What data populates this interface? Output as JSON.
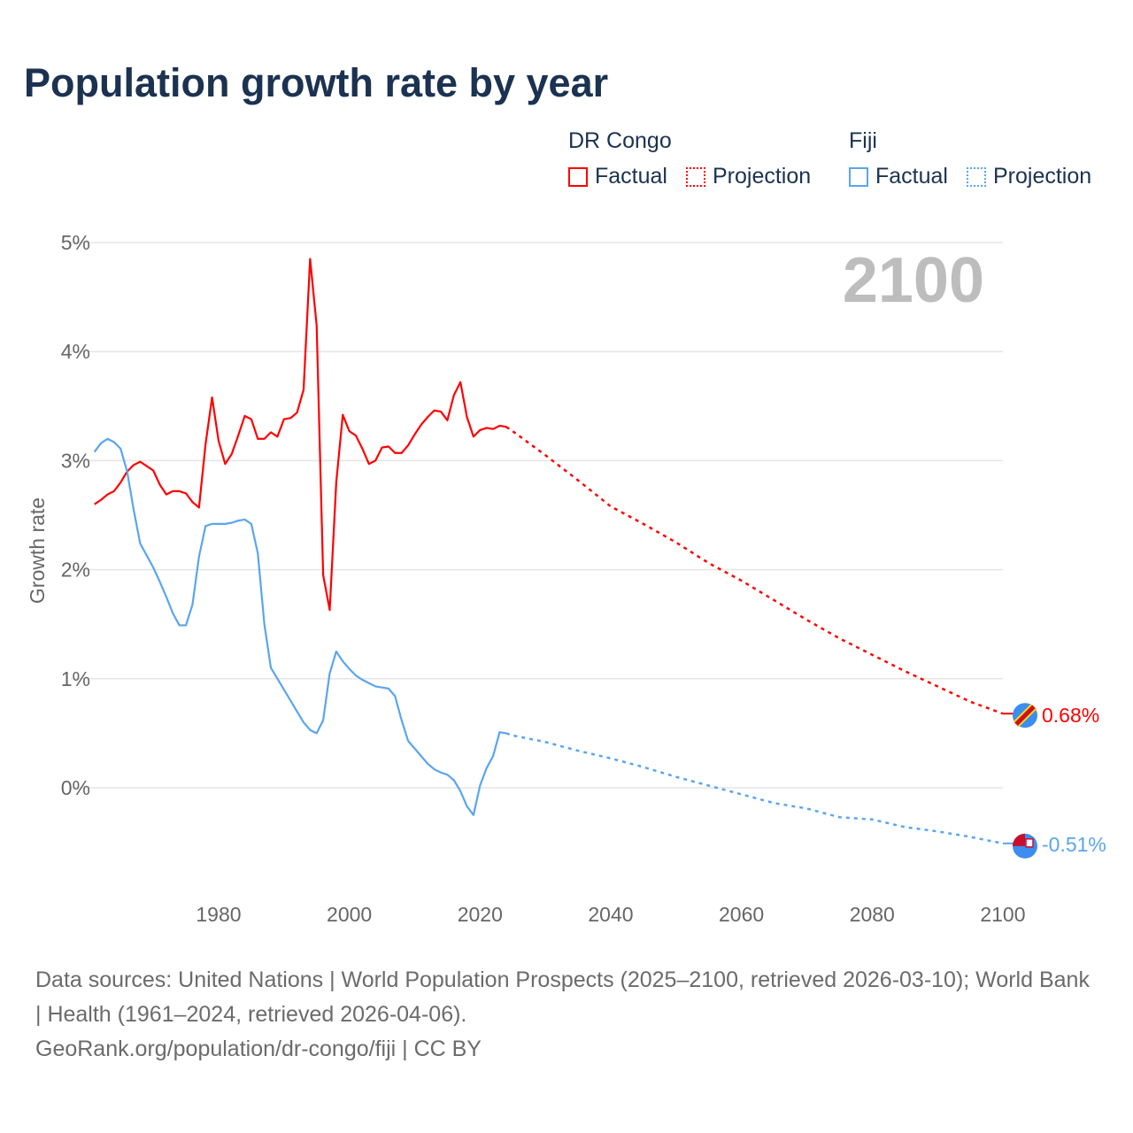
{
  "title": "Population growth rate by year",
  "legend": {
    "groups": [
      {
        "country": "DR Congo",
        "factual": "Factual",
        "projection": "Projection",
        "color": "#ff0000"
      },
      {
        "country": "Fiji",
        "factual": "Factual",
        "projection": "Projection",
        "color": "#5aa5ee"
      }
    ]
  },
  "year_label": "2100",
  "footer": {
    "sources": "Data sources: United Nations | World Population Prospects (2025–2100, retrieved 2026-03-10); World Bank | Health (1961–2024, retrieved 2026-04-06).",
    "credit": "GeoRank.org/population/dr-congo/fiji | CC BY"
  },
  "chart_data": {
    "type": "line",
    "ylabel": "Growth rate",
    "xlim": [
      1961,
      2100
    ],
    "ylim": [
      -1,
      5
    ],
    "x_ticks": [
      "1980",
      "2000",
      "2020",
      "2040",
      "2060",
      "2080",
      "2100"
    ],
    "y_ticks": [
      "0%",
      "1%",
      "2%",
      "3%",
      "4%",
      "5%"
    ],
    "grid": true,
    "series": [
      {
        "name": "DR Congo",
        "color": "#ff0000",
        "end_label": "0.68%",
        "factual_start": 1961,
        "factual": [
          2.6,
          2.64,
          2.69,
          2.72,
          2.8,
          2.9,
          2.96,
          2.99,
          2.95,
          2.91,
          2.78,
          2.69,
          2.72,
          2.72,
          2.7,
          2.62,
          2.57,
          3.15,
          3.58,
          3.18,
          2.97,
          3.06,
          3.23,
          3.41,
          3.38,
          3.2,
          3.2,
          3.26,
          3.22,
          3.38,
          3.39,
          3.44,
          3.65,
          4.85,
          4.24,
          1.95,
          1.63,
          2.8,
          3.42,
          3.27,
          3.23,
          3.11,
          2.97,
          3.0,
          3.12,
          3.13,
          3.07,
          3.07,
          3.14,
          3.24,
          3.33,
          3.4,
          3.46,
          3.45,
          3.37,
          3.6,
          3.72,
          3.4,
          3.22,
          3.28,
          3.3,
          3.29,
          3.32,
          3.31
        ],
        "projection_years": [
          2024,
          2025,
          2030,
          2035,
          2040,
          2045,
          2050,
          2055,
          2060,
          2065,
          2070,
          2075,
          2080,
          2085,
          2090,
          2095,
          2100
        ],
        "projection": [
          3.31,
          3.27,
          3.05,
          2.82,
          2.58,
          2.42,
          2.25,
          2.06,
          1.9,
          1.72,
          1.54,
          1.37,
          1.22,
          1.07,
          0.93,
          0.79,
          0.68
        ]
      },
      {
        "name": "Fiji",
        "color": "#5aa5ee",
        "end_label": "-0.51%",
        "factual_start": 1961,
        "factual": [
          3.08,
          3.16,
          3.2,
          3.17,
          3.11,
          2.9,
          2.55,
          2.24,
          2.13,
          2.02,
          1.89,
          1.75,
          1.6,
          1.49,
          1.49,
          1.68,
          2.12,
          2.4,
          2.42,
          2.42,
          2.42,
          2.43,
          2.45,
          2.46,
          2.42,
          2.15,
          1.5,
          1.1,
          1.0,
          0.9,
          0.8,
          0.7,
          0.6,
          0.53,
          0.5,
          0.62,
          1.05,
          1.25,
          1.16,
          1.09,
          1.03,
          0.99,
          0.96,
          0.93,
          0.92,
          0.91,
          0.84,
          0.62,
          0.43,
          0.36,
          0.29,
          0.22,
          0.17,
          0.14,
          0.12,
          0.07,
          -0.03,
          -0.17,
          -0.25,
          0.02,
          0.18,
          0.29,
          0.51,
          0.5
        ],
        "projection_years": [
          2024,
          2025,
          2030,
          2035,
          2040,
          2045,
          2050,
          2055,
          2060,
          2065,
          2070,
          2075,
          2080,
          2085,
          2090,
          2095,
          2100
        ],
        "projection": [
          0.5,
          0.48,
          0.42,
          0.34,
          0.27,
          0.19,
          0.1,
          0.02,
          -0.06,
          -0.14,
          -0.19,
          -0.27,
          -0.29,
          -0.36,
          -0.4,
          -0.45,
          -0.51
        ]
      }
    ]
  }
}
